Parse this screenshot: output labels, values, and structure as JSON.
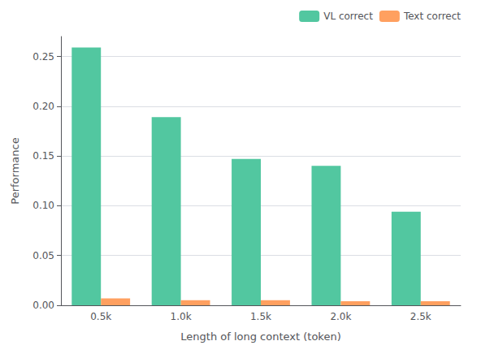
{
  "chart_data": {
    "type": "bar",
    "categories": [
      "0.5k",
      "1.0k",
      "1.5k",
      "2.0k",
      "2.5k"
    ],
    "series": [
      {
        "name": "VL correct",
        "color": "#52C7A0",
        "values": [
          0.259,
          0.189,
          0.147,
          0.14,
          0.094
        ]
      },
      {
        "name": "Text correct",
        "color": "#FFA060",
        "values": [
          0.007,
          0.005,
          0.005,
          0.004,
          0.004
        ]
      }
    ],
    "xlabel": "Length of long context (token)",
    "ylabel": "Performance",
    "ylim": [
      0,
      0.27
    ],
    "yticks": [
      {
        "value": 0,
        "label": "0.00"
      },
      {
        "value": 0.05,
        "label": "0.05"
      },
      {
        "value": 0.1,
        "label": "0.10"
      },
      {
        "value": 0.15,
        "label": "0.15"
      },
      {
        "value": 0.2,
        "label": "0.20"
      },
      {
        "value": 0.25,
        "label": "0.25"
      }
    ],
    "grid": true,
    "legend": "upper right"
  }
}
